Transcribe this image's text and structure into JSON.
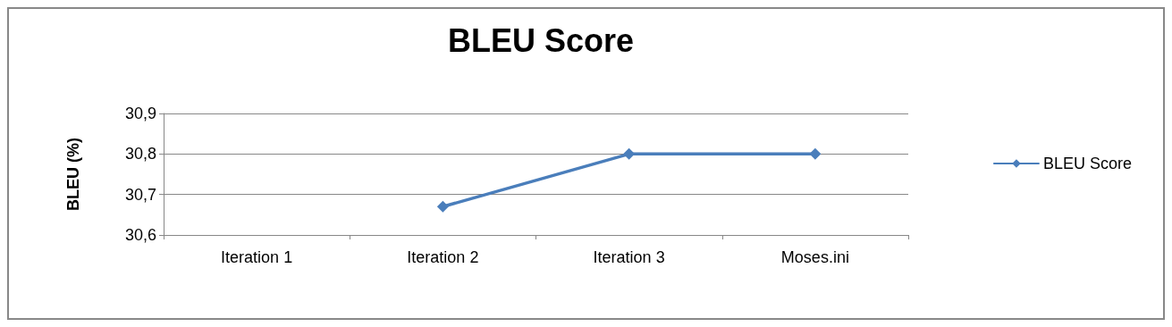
{
  "chart_data": {
    "type": "line",
    "title": "BLEU Score",
    "ylabel": "BLEU (%)",
    "categories": [
      "Iteration 1",
      "Iteration 2",
      "Iteration 3",
      "Moses.ini"
    ],
    "series": [
      {
        "name": "BLEU Score",
        "color": "#4a7ebb",
        "values": [
          null,
          30.67,
          30.8,
          30.8
        ]
      }
    ],
    "ylim": [
      30.6,
      30.9
    ],
    "yticks": [
      {
        "value": 30.6,
        "label": "30,6"
      },
      {
        "value": 30.7,
        "label": "30,7"
      },
      {
        "value": 30.8,
        "label": "30,8"
      },
      {
        "value": 30.9,
        "label": "30,9"
      }
    ],
    "grid": "y",
    "legend": "right",
    "marker": "diamond",
    "line_style": "solid"
  }
}
